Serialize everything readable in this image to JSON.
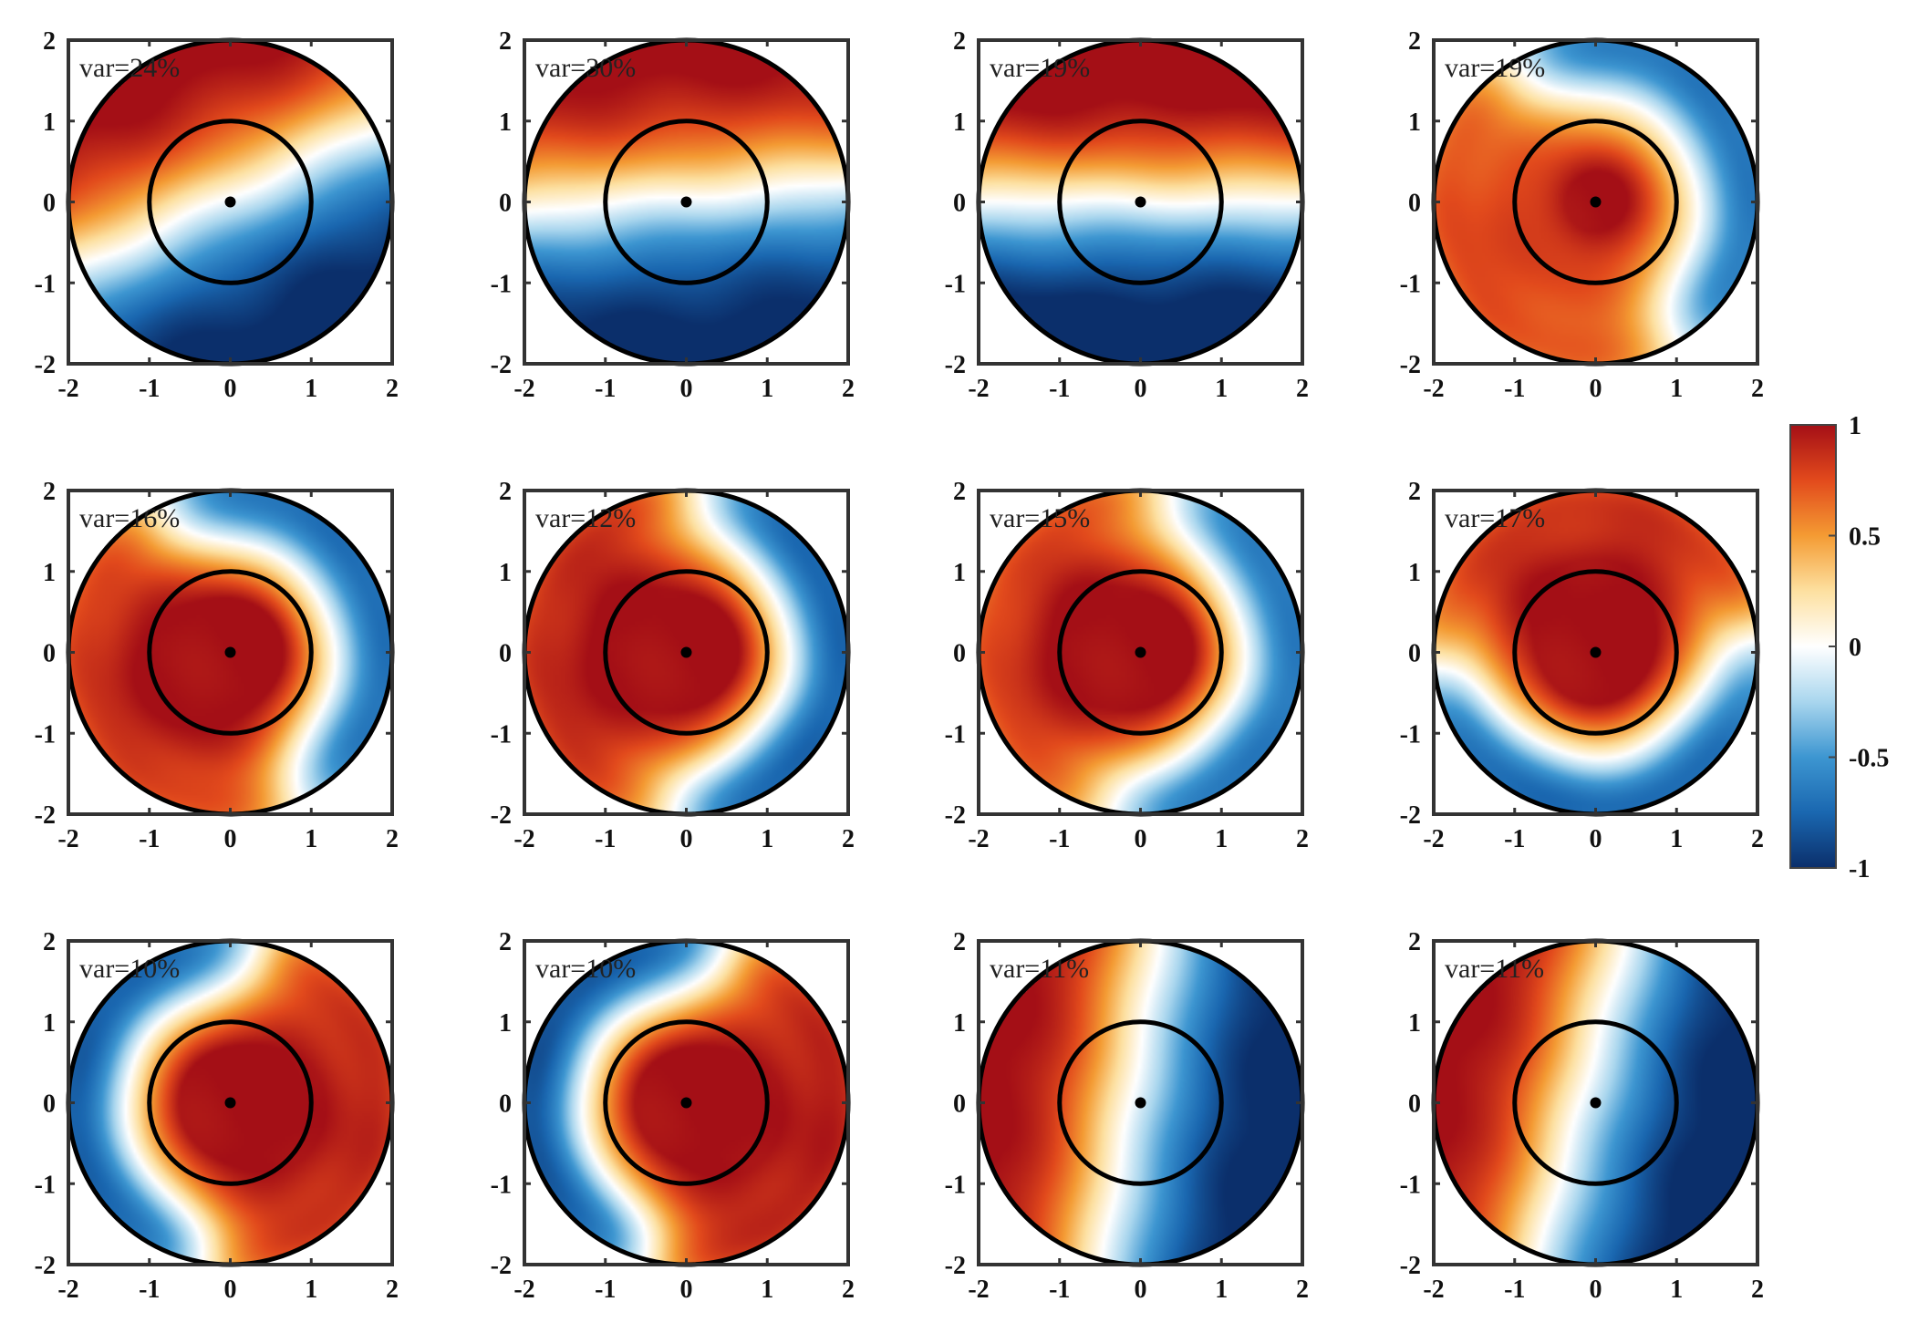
{
  "chart_data": {
    "type": "heatmap",
    "grid": {
      "rows": 3,
      "cols": 4
    },
    "xlim": [
      -2,
      2
    ],
    "ylim": [
      -2,
      2
    ],
    "x_ticks": [
      "-2",
      "-1",
      "0",
      "1",
      "2"
    ],
    "y_ticks": [
      "2",
      "1",
      "0",
      "-1",
      "-2"
    ],
    "inner_circle_radius": 1,
    "outer_circle_radius": 2,
    "colorscale": {
      "range": [
        -1,
        1
      ],
      "ticks": [
        "1",
        "0.5",
        "0",
        "-0.5",
        "-1"
      ],
      "stops": [
        "#0b2f6b",
        "#1a67b0",
        "#3d96d1",
        "#a9d6ee",
        "#ffffff",
        "#fde0a0",
        "#f49b33",
        "#e24a1c",
        "#a40f16"
      ]
    },
    "panels": [
      {
        "label": "var=24%",
        "pattern": "dipole",
        "amplitude": 1.0,
        "angle_deg": 115,
        "offset": 0.05
      },
      {
        "label": "var=30%",
        "pattern": "dipole",
        "amplitude": 1.0,
        "angle_deg": 95,
        "offset": 0.05
      },
      {
        "label": "var=19%",
        "pattern": "dipole",
        "amplitude": 1.1,
        "angle_deg": 90,
        "offset": 0.0
      },
      {
        "label": "var=19%",
        "pattern": "core_ring",
        "core": 0.75,
        "ring_amp": 0.7,
        "angle_deg": 30
      },
      {
        "label": "var=16%",
        "pattern": "core_ring",
        "core": 1.0,
        "ring_amp": 0.75,
        "angle_deg": 25
      },
      {
        "label": "var=12%",
        "pattern": "core_ring",
        "core": 1.0,
        "ring_amp": 0.8,
        "angle_deg": -5
      },
      {
        "label": "var=15%",
        "pattern": "core_ring",
        "core": 1.0,
        "ring_amp": 0.7,
        "angle_deg": -10
      },
      {
        "label": "var=17%",
        "pattern": "core_ring",
        "core": 1.0,
        "ring_amp": 0.75,
        "angle_deg": -85
      },
      {
        "label": "var=10%",
        "pattern": "core_ring",
        "core": 1.0,
        "ring_amp": 0.8,
        "angle_deg": 170
      },
      {
        "label": "var=10%",
        "pattern": "core_ring",
        "core": 1.0,
        "ring_amp": 0.85,
        "angle_deg": 165
      },
      {
        "label": "var=11%",
        "pattern": "dipole",
        "amplitude": 1.0,
        "angle_deg": 170,
        "offset": 0.1
      },
      {
        "label": "var=11%",
        "pattern": "dipole",
        "amplitude": 1.0,
        "angle_deg": 165,
        "offset": 0.15
      }
    ]
  }
}
